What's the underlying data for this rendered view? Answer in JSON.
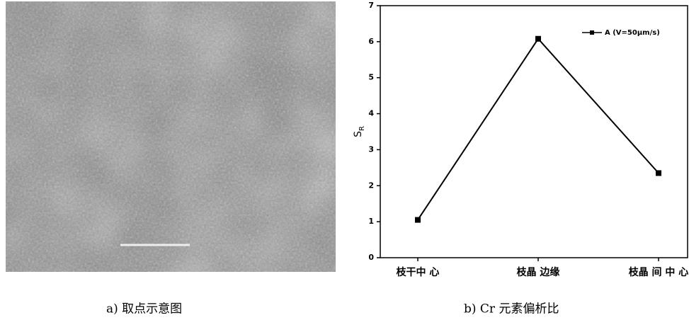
{
  "figure_a": {
    "caption": "a)  取点示意图"
  },
  "chart_data": {
    "type": "line",
    "caption": "b) Cr 元素偏析比",
    "y_label": "S",
    "y_label_subscript": "R",
    "categories": [
      "枝干中 心",
      "枝晶 边缘",
      "枝晶 间 中 心"
    ],
    "series": [
      {
        "name": "A (V=50μm/s)",
        "color": "#000000",
        "values": [
          1.05,
          6.08,
          2.35
        ]
      }
    ],
    "ylim": [
      0,
      7
    ],
    "yticks": [
      0,
      1,
      2,
      3,
      4,
      5,
      6,
      7
    ],
    "grid": false,
    "legend": "upper right"
  }
}
